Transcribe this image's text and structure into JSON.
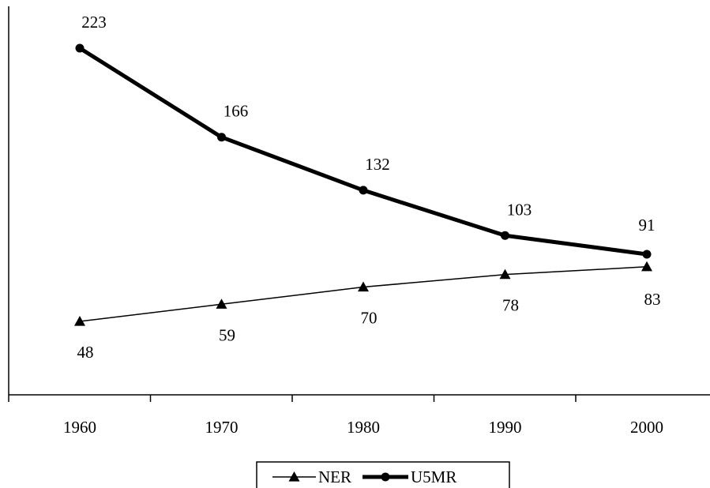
{
  "chart_data": {
    "type": "line",
    "title": "",
    "xlabel": "",
    "ylabel": "",
    "categories": [
      "1960",
      "1970",
      "1980",
      "1990",
      "2000"
    ],
    "x": [
      1960,
      1970,
      1980,
      1990,
      2000
    ],
    "series": [
      {
        "name": "NER",
        "values": [
          48,
          59,
          70,
          78,
          83
        ],
        "data_labels": [
          "48",
          "59",
          "70",
          "78",
          "83"
        ],
        "marker": "triangle",
        "line": "thin",
        "color": "#000000"
      },
      {
        "name": "U5MR",
        "values": [
          223,
          166,
          132,
          103,
          91
        ],
        "data_labels": [
          "223",
          "166",
          "132",
          "103",
          "91"
        ],
        "marker": "circle",
        "line": "thick",
        "color": "#000000"
      }
    ],
    "ylim": [
      0,
      250
    ],
    "grid": false,
    "y_tick_labels": false,
    "legend_position": "bottom"
  }
}
